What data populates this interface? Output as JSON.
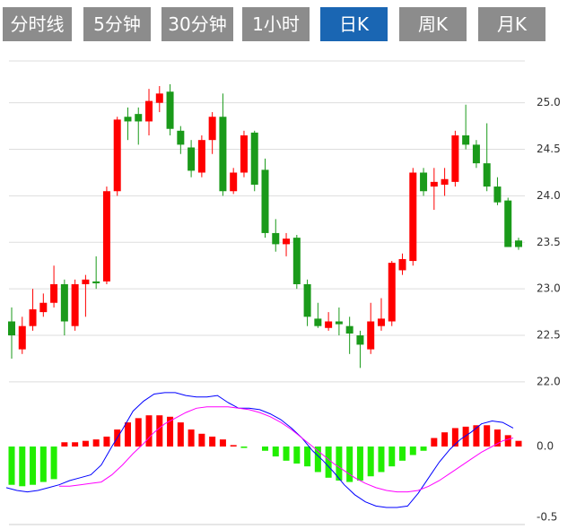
{
  "tabs": [
    "分时线",
    "5分钟",
    "30分钟",
    "1小时",
    "日K",
    "周K",
    "月K"
  ],
  "active_tab": "日K",
  "chart_data": [
    {
      "type": "candlestick",
      "up_color": "#ff0000",
      "down_color": "#1a9a1a",
      "grid": true,
      "ylim": [
        21.98,
        25.45
      ],
      "yticks": [
        {
          "value": 25.0,
          "label": "25.0"
        },
        {
          "value": 24.5,
          "label": "24.5"
        },
        {
          "value": 24.0,
          "label": "24.0"
        },
        {
          "value": 23.5,
          "label": "23.5"
        },
        {
          "value": 23.0,
          "label": "23.0"
        },
        {
          "value": 22.5,
          "label": "22.5"
        },
        {
          "value": 22.0,
          "label": "22.0"
        }
      ],
      "open": [
        22.65,
        22.35,
        22.6,
        22.75,
        22.85,
        23.05,
        22.6,
        23.05,
        23.08,
        23.08,
        24.05,
        24.85,
        24.88,
        24.8,
        25.0,
        25.12,
        24.7,
        24.52,
        24.25,
        24.6,
        24.85,
        24.05,
        24.25,
        24.68,
        24.28,
        23.6,
        23.48,
        23.55,
        23.05,
        22.68,
        22.58,
        22.65,
        22.6,
        22.5,
        22.35,
        22.6,
        22.65,
        23.2,
        23.3,
        24.25,
        24.1,
        24.12,
        24.15,
        24.65,
        24.55,
        24.35,
        24.1,
        23.95,
        23.52
      ],
      "high": [
        22.8,
        22.7,
        23.0,
        22.95,
        23.25,
        23.1,
        23.1,
        23.15,
        23.35,
        24.1,
        24.85,
        24.95,
        24.95,
        25.15,
        25.18,
        25.2,
        24.75,
        24.6,
        24.65,
        24.9,
        25.1,
        24.3,
        24.7,
        24.7,
        24.4,
        23.75,
        23.6,
        23.58,
        23.1,
        22.85,
        22.75,
        22.8,
        22.7,
        22.55,
        22.85,
        22.9,
        23.3,
        23.38,
        24.3,
        24.3,
        24.3,
        24.3,
        24.7,
        24.98,
        24.6,
        24.78,
        24.2,
        23.98,
        23.55
      ],
      "low": [
        22.25,
        22.3,
        22.55,
        22.7,
        22.8,
        22.5,
        22.55,
        22.7,
        23.0,
        23.05,
        24.0,
        24.6,
        24.55,
        24.65,
        24.9,
        24.65,
        24.45,
        24.2,
        24.2,
        24.45,
        24.0,
        24.02,
        24.2,
        24.05,
        23.55,
        23.4,
        23.35,
        23.0,
        22.6,
        22.58,
        22.55,
        22.5,
        22.3,
        22.15,
        22.3,
        22.55,
        22.6,
        23.15,
        23.25,
        24.0,
        23.85,
        24.0,
        24.1,
        24.5,
        24.3,
        24.05,
        23.9,
        23.45,
        23.42
      ],
      "close": [
        22.5,
        22.6,
        22.78,
        22.85,
        23.05,
        22.65,
        23.05,
        23.1,
        23.06,
        24.05,
        24.82,
        24.8,
        24.8,
        25.02,
        25.1,
        24.72,
        24.55,
        24.27,
        24.6,
        24.85,
        24.05,
        24.25,
        24.65,
        24.12,
        23.6,
        23.48,
        23.54,
        23.05,
        22.7,
        22.6,
        22.65,
        22.62,
        22.52,
        22.4,
        22.65,
        22.68,
        23.28,
        23.32,
        24.25,
        24.05,
        24.15,
        24.18,
        24.65,
        24.55,
        24.35,
        24.1,
        23.93,
        23.45,
        23.45
      ]
    },
    {
      "type": "macd",
      "up_color": "#ff0000",
      "down_color": "#22ee00",
      "ylim": [
        -0.55,
        0.43
      ],
      "yticks": [
        {
          "value": 0.0,
          "label": "0.0"
        },
        {
          "value": -0.5,
          "label": "-0.5"
        }
      ],
      "values": [
        -0.27,
        -0.28,
        -0.27,
        -0.25,
        -0.23,
        0.03,
        0.03,
        0.04,
        0.05,
        0.07,
        0.12,
        0.17,
        0.2,
        0.22,
        0.22,
        0.21,
        0.17,
        0.12,
        0.09,
        0.07,
        0.05,
        0.01,
        -0.01,
        0.0,
        -0.03,
        -0.07,
        -0.1,
        -0.12,
        -0.14,
        -0.18,
        -0.22,
        -0.24,
        -0.25,
        -0.24,
        -0.21,
        -0.18,
        -0.14,
        -0.1,
        -0.06,
        -0.03,
        0.06,
        0.1,
        0.13,
        0.14,
        0.15,
        0.15,
        0.12,
        0.08,
        0.04
      ],
      "lines": [
        {
          "color": "#0000ff",
          "values": [
            -0.29,
            -0.31,
            -0.32,
            -0.31,
            -0.29,
            -0.27,
            -0.24,
            -0.22,
            -0.2,
            -0.13,
            0.0,
            0.12,
            0.25,
            0.32,
            0.37,
            0.38,
            0.38,
            0.36,
            0.35,
            0.35,
            0.36,
            0.31,
            0.27,
            0.27,
            0.26,
            0.23,
            0.19,
            0.13,
            0.06,
            -0.03,
            -0.1,
            -0.18,
            -0.27,
            -0.34,
            -0.39,
            -0.42,
            -0.43,
            -0.43,
            -0.42,
            -0.33,
            -0.22,
            -0.11,
            -0.02,
            0.05,
            0.1,
            0.16,
            0.18,
            0.17,
            0.13
          ]
        },
        {
          "color": "#ff00ff",
          "values": [
            null,
            null,
            null,
            null,
            null,
            -0.28,
            -0.28,
            -0.27,
            -0.26,
            -0.25,
            -0.2,
            -0.13,
            -0.05,
            0.02,
            0.1,
            0.16,
            0.2,
            0.24,
            0.27,
            0.28,
            0.28,
            0.28,
            0.27,
            0.26,
            0.24,
            0.21,
            0.17,
            0.12,
            0.06,
            0.0,
            -0.06,
            -0.12,
            -0.17,
            -0.22,
            -0.26,
            -0.29,
            -0.31,
            -0.32,
            -0.32,
            -0.31,
            -0.28,
            -0.24,
            -0.19,
            -0.14,
            -0.09,
            -0.04,
            0.0,
            0.04,
            0.06
          ]
        }
      ]
    }
  ]
}
